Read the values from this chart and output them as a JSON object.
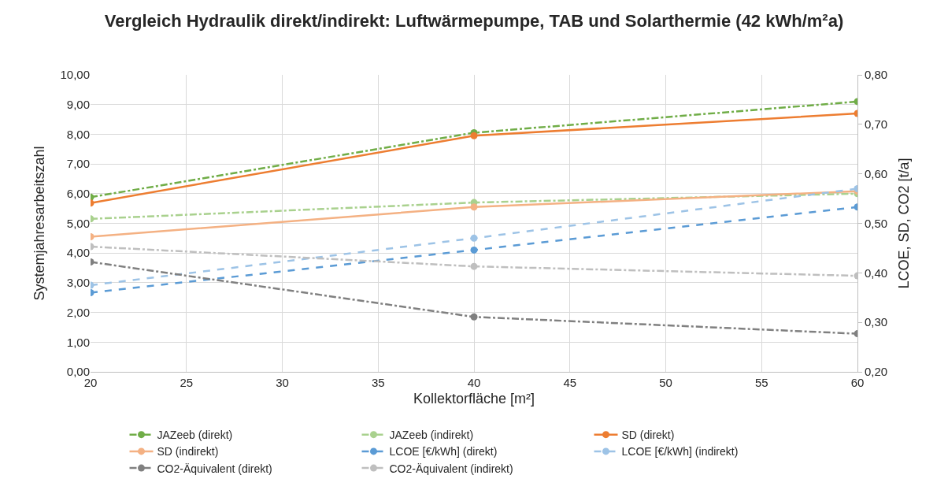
{
  "chart_data": {
    "type": "line",
    "title": "Vergleich Hydraulik direkt/indirekt: Luftwärmepumpe, TAB und Solarthermie (42 kWh/m²a)",
    "xlabel": "Kollektorfläche [m²]",
    "ylabel": "Systemjahresarbeitszahl",
    "y2label": "LCOE, SD, CO2 [t/a]",
    "x": [
      20,
      40,
      60
    ],
    "series": [
      {
        "name": "JAZeeb (direkt)",
        "color": "#70ad47",
        "values": [
          5.88,
          8.05,
          9.1
        ],
        "line_style": "dashdot"
      },
      {
        "name": "JAZeeb (indirekt)",
        "color": "#a9d18e",
        "values": [
          5.15,
          5.7,
          6.0
        ],
        "line_style": "dashdot"
      },
      {
        "name": "SD (direkt)",
        "color": "#ed7d31",
        "values": [
          0.541,
          0.677,
          0.722
        ],
        "axis": "y2",
        "line_style": "solid"
      },
      {
        "name": "SD (indirekt)",
        "color": "#f4b183",
        "values": [
          0.473,
          0.533,
          0.565
        ],
        "axis": "y2",
        "line_style": "solid"
      },
      {
        "name": "LCOE [€/kWh] (direkt)",
        "color": "#5b9bd5",
        "values": [
          0.36,
          0.446,
          0.533
        ],
        "axis": "y2",
        "line_style": "dashed"
      },
      {
        "name": "LCOE [€/kWh] (indirekt)",
        "color": "#9dc3e6",
        "values": [
          0.375,
          0.47,
          0.57
        ],
        "axis": "y2",
        "line_style": "dashed"
      },
      {
        "name": "CO2-Äquivalent (direkt)",
        "color": "#808080",
        "values": [
          0.422,
          0.311,
          0.277
        ],
        "axis": "y2",
        "line_style": "dashdot"
      },
      {
        "name": "CO2-Äquivalent (indirekt)",
        "color": "#bfbfbf",
        "values": [
          0.453,
          0.413,
          0.394
        ],
        "axis": "y2",
        "line_style": "dashdot"
      }
    ],
    "xlim": [
      20,
      60
    ],
    "xticks": [
      20,
      25,
      30,
      35,
      40,
      45,
      50,
      55,
      60
    ],
    "ylim": [
      0,
      10
    ],
    "yticks": [
      {
        "value": 0,
        "label": "0,00"
      },
      {
        "value": 1,
        "label": "1,00"
      },
      {
        "value": 2,
        "label": "2,00"
      },
      {
        "value": 3,
        "label": "3,00"
      },
      {
        "value": 4,
        "label": "4,00"
      },
      {
        "value": 5,
        "label": "5,00"
      },
      {
        "value": 6,
        "label": "6,00"
      },
      {
        "value": 7,
        "label": "7,00"
      },
      {
        "value": 8,
        "label": "8,00"
      },
      {
        "value": 9,
        "label": "9,00"
      },
      {
        "value": 10,
        "label": "10,00"
      }
    ],
    "y2lim": [
      0.2,
      0.8
    ],
    "y2ticks": [
      {
        "value": 0.2,
        "label": "0,20"
      },
      {
        "value": 0.3,
        "label": "0,30"
      },
      {
        "value": 0.4,
        "label": "0,40"
      },
      {
        "value": 0.5,
        "label": "0,50"
      },
      {
        "value": 0.6,
        "label": "0,60"
      },
      {
        "value": 0.7,
        "label": "0,70"
      },
      {
        "value": 0.8,
        "label": "0,80"
      }
    ],
    "grid": true,
    "legend": "bottom",
    "marker": "circle"
  }
}
